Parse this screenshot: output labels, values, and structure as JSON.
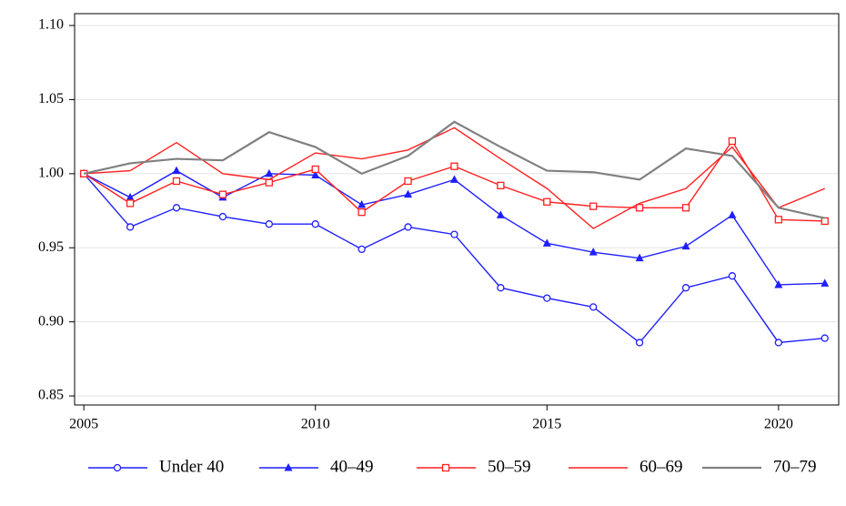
{
  "chart_data": {
    "type": "line",
    "x": [
      2005,
      2006,
      2007,
      2008,
      2009,
      2010,
      2011,
      2012,
      2013,
      2014,
      2015,
      2016,
      2017,
      2018,
      2019,
      2020,
      2021
    ],
    "series": [
      {
        "name": "Under 40",
        "color": "#1f1fff",
        "marker": "circle-open",
        "values": [
          1.0,
          0.964,
          0.977,
          0.971,
          0.966,
          0.966,
          0.949,
          0.964,
          0.959,
          0.923,
          0.916,
          0.91,
          0.886,
          0.923,
          0.931,
          0.886,
          0.889
        ]
      },
      {
        "name": "40–49",
        "color": "#1f1fff",
        "marker": "triangle-filled",
        "values": [
          1.0,
          0.984,
          1.002,
          0.984,
          1.0,
          0.999,
          0.979,
          0.986,
          0.996,
          0.972,
          0.953,
          0.947,
          0.943,
          0.951,
          0.972,
          0.925,
          0.926
        ]
      },
      {
        "name": "50–59",
        "color": "#ff2020",
        "marker": "square-open",
        "values": [
          1.0,
          0.98,
          0.995,
          0.986,
          0.994,
          1.003,
          0.974,
          0.995,
          1.005,
          0.992,
          0.981,
          0.978,
          0.977,
          0.977,
          1.022,
          0.969,
          0.968
        ]
      },
      {
        "name": "60–69",
        "color": "#ff2020",
        "values": [
          1.0,
          1.002,
          1.021,
          1.0,
          0.996,
          1.014,
          1.01,
          1.016,
          1.031,
          1.01,
          0.99,
          0.963,
          0.98,
          0.99,
          1.018,
          0.977,
          0.99
        ]
      },
      {
        "name": "70–79",
        "color": "#808080",
        "values": [
          1.0,
          1.007,
          1.01,
          1.009,
          1.028,
          1.018,
          1.0,
          1.012,
          1.035,
          1.018,
          1.002,
          1.001,
          0.996,
          1.017,
          1.012,
          0.977,
          0.97
        ]
      }
    ],
    "xlim": [
      2004.8,
      2021.3
    ],
    "xticks": [
      2005,
      2010,
      2015,
      2020
    ],
    "ylim": [
      0.8439,
      1.108
    ],
    "yticks": [
      {
        "value": 0.85,
        "label": "0.85"
      },
      {
        "value": 0.9,
        "label": "0.90"
      },
      {
        "value": 0.95,
        "label": "0.95"
      },
      {
        "value": 1.0,
        "label": "1.00"
      },
      {
        "value": 1.05,
        "label": "1.05"
      },
      {
        "value": 1.1,
        "label": "1.10"
      }
    ],
    "grid": true,
    "legend": "bottom"
  }
}
